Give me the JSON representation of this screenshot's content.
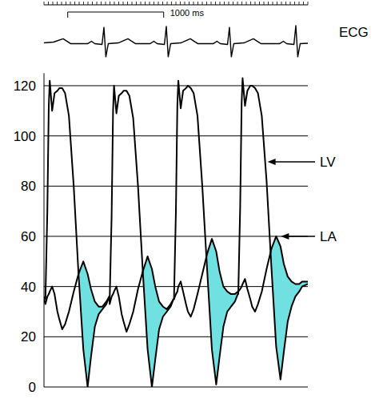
{
  "chart_data": [
    {
      "type": "line",
      "x": [
        0,
        100,
        200,
        280,
        455,
        495,
        530,
        605,
        625,
        645,
        670,
        775,
        875,
        955,
        1105,
        1145,
        1180,
        1255,
        1275,
        1295,
        1320,
        1425,
        1525,
        1605,
        1763,
        1803,
        1838,
        1913,
        1933,
        1953,
        1978,
        2083,
        2183,
        2263,
        2455,
        2495,
        2530,
        2605,
        2625,
        2645,
        2670,
        2750
      ],
      "xlim": [
        0,
        2750
      ],
      "ylim": [
        -1,
        1.2
      ],
      "tick_labels": false,
      "scale_bar": {
        "label": "1000 ms",
        "value": 1000
      },
      "series": [
        {
          "name": "ECG",
          "color": "#000000",
          "values": [
            0.05,
            0.1,
            0.3,
            0,
            0,
            0.15,
            0,
            -0.05,
            1,
            -0.8,
            0,
            0.05,
            0.3,
            0,
            0,
            0.15,
            0,
            -0.05,
            1.05,
            -0.8,
            0,
            0.05,
            0.3,
            0,
            0,
            0.15,
            0,
            -0.05,
            1,
            -0.8,
            0,
            0.05,
            0.3,
            0,
            0,
            0.15,
            0,
            -0.05,
            1.1,
            -0.8,
            0,
            0.03
          ]
        }
      ]
    },
    {
      "type": "line",
      "x": [
        0,
        15,
        35,
        50,
        60,
        85,
        110,
        140,
        160,
        190,
        220,
        260,
        310,
        360,
        410,
        455,
        490,
        530,
        570,
        610,
        650,
        680,
        685,
        705,
        720,
        730,
        755,
        780,
        810,
        830,
        860,
        890,
        930,
        980,
        1030,
        1080,
        1125,
        1160,
        1200,
        1240,
        1280,
        1320,
        1350,
        1355,
        1375,
        1390,
        1400,
        1425,
        1450,
        1480,
        1500,
        1530,
        1560,
        1600,
        1650,
        1700,
        1750,
        1795,
        1830,
        1870,
        1910,
        1950,
        1990,
        2020,
        2025,
        2045,
        2060,
        2070,
        2095,
        2120,
        2150,
        2170,
        2200,
        2230,
        2270,
        2320,
        2370,
        2420,
        2465,
        2500,
        2540,
        2580,
        2620,
        2660,
        2690,
        2750
      ],
      "xlim": [
        0,
        2750
      ],
      "ylim": [
        0,
        125
      ],
      "yticks": [
        0,
        20,
        40,
        60,
        80,
        100,
        120
      ],
      "grid": true,
      "tick_labels": "y",
      "color": "#70e0e0",
      "series": [
        {
          "name": "LV",
          "color": "#000000",
          "values": [
            36,
            35,
            70,
            112,
            122,
            110,
            117,
            118,
            119,
            119,
            117,
            108,
            80,
            45,
            15,
            0,
            12,
            24,
            29,
            31,
            33,
            36,
            35,
            68,
            110,
            120,
            109,
            116,
            117,
            118,
            118,
            116,
            107,
            80,
            46,
            15,
            0,
            11,
            23,
            28,
            30,
            32,
            35,
            35,
            70,
            112,
            122,
            111,
            118,
            119,
            120,
            119,
            117,
            108,
            80,
            47,
            15,
            1,
            12,
            24,
            30,
            32,
            34,
            37,
            37,
            72,
            113,
            123,
            112,
            118,
            120,
            120,
            119,
            117,
            108,
            82,
            48,
            16,
            3,
            14,
            26,
            32,
            36,
            38,
            40,
            41
          ]
        },
        {
          "name": "LA",
          "color": "#000000",
          "values": [
            35,
            33,
            36,
            37,
            38,
            40,
            37,
            30,
            27,
            23,
            25,
            30,
            38,
            45,
            50,
            45,
            39,
            34,
            32,
            32,
            34,
            36,
            33,
            36,
            37,
            38,
            40,
            36,
            29,
            26,
            22,
            25,
            30,
            39,
            46,
            52,
            47,
            40,
            34,
            32,
            31,
            33,
            35,
            35,
            37,
            38,
            40,
            42,
            38,
            33,
            30,
            28,
            31,
            37,
            45,
            53,
            59,
            54,
            46,
            40,
            38,
            37,
            37,
            38,
            38,
            39,
            40,
            41,
            43,
            39,
            35,
            32,
            30,
            33,
            38,
            47,
            55,
            60,
            56,
            49,
            44,
            42,
            41,
            41,
            42,
            42
          ]
        }
      ]
    }
  ]
}
